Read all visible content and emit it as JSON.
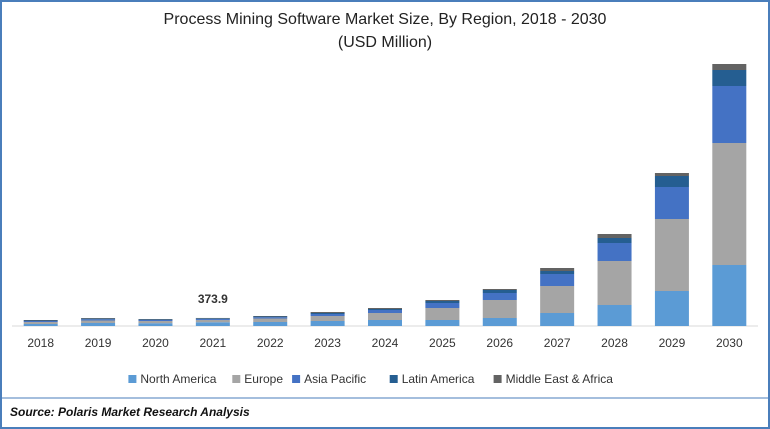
{
  "chart_data": {
    "type": "stacked-bar",
    "title": "Process Mining Software Market Size, By Region, 2018 - 2030",
    "subtitle": "(USD Million)",
    "source": "Source: Polaris  Market Research Analysis",
    "categories": [
      "2018",
      "2019",
      "2020",
      "2021",
      "2022",
      "2023",
      "2024",
      "2025",
      "2026",
      "2027",
      "2028",
      "2029",
      "2030"
    ],
    "ylim": [
      0,
      26600
    ],
    "legend": "bottom",
    "series": [
      {
        "name": "North America",
        "color": "#5b9bd5",
        "values": [
          200,
          300,
          280,
          373.9,
          400,
          500,
          600,
          600,
          800,
          1300,
          2100,
          3500,
          6100
        ],
        "value_labels": [
          null,
          null,
          null,
          "373.9",
          null,
          null,
          null,
          null,
          null,
          null,
          null,
          null,
          null
        ]
      },
      {
        "name": "Europe",
        "color": "#a5a5a5",
        "values": [
          200,
          250,
          220,
          230,
          350,
          500,
          700,
          1200,
          1800,
          2700,
          4400,
          7200,
          12200
        ]
      },
      {
        "name": "Asia Pacific",
        "color": "#4472c4",
        "values": [
          100,
          120,
          100,
          100,
          130,
          200,
          300,
          500,
          700,
          1200,
          1800,
          3200,
          5700
        ]
      },
      {
        "name": "Latin America",
        "color": "#255e91",
        "values": [
          50,
          70,
          60,
          60,
          70,
          100,
          100,
          200,
          300,
          300,
          500,
          1100,
          1600
        ]
      },
      {
        "name": "Middle East & Africa",
        "color": "#636363",
        "values": [
          50,
          60,
          40,
          40,
          50,
          100,
          100,
          100,
          100,
          300,
          400,
          300,
          600
        ]
      }
    ]
  }
}
